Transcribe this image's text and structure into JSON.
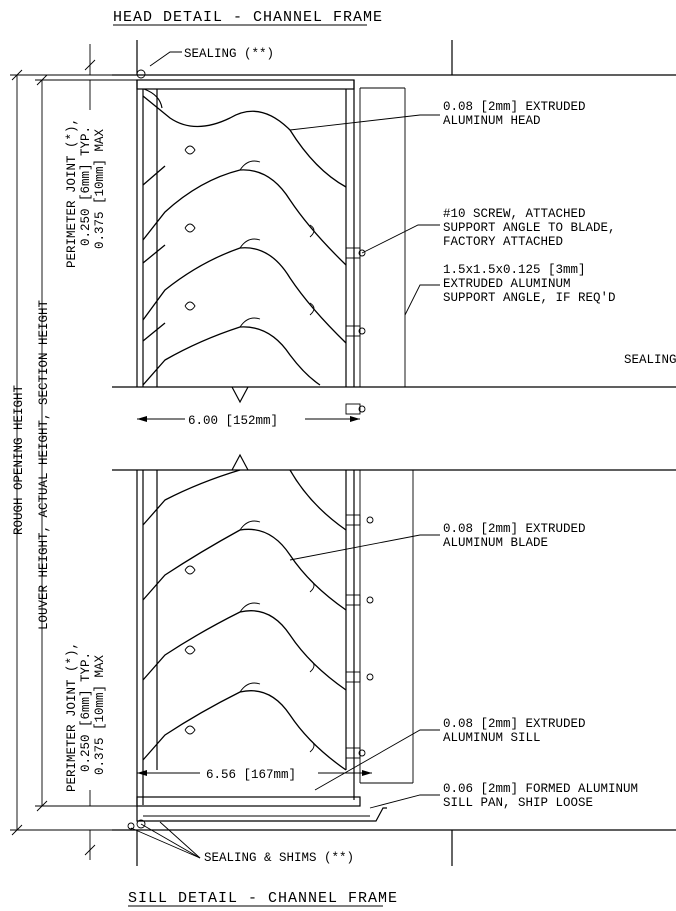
{
  "titles": {
    "head": "HEAD DETAIL - CHANNEL FRAME",
    "sill": "SILL DETAIL - CHANNEL FRAME"
  },
  "labels": {
    "sealing_top": "SEALING (**)",
    "head_line1": "0.08 [2mm] EXTRUDED",
    "head_line2": "ALUMINUM HEAD",
    "screw_line1": "#10 SCREW, ATTACHED",
    "screw_line2": "SUPPORT ANGLE TO BLADE,",
    "screw_line3": "FACTORY ATTACHED",
    "angle_line1": "1.5x1.5x0.125 [3mm]",
    "angle_line2": "EXTRUDED ALUMINUM",
    "angle_line3": "SUPPORT ANGLE, IF REQ'D",
    "sealing_right": "SEALING",
    "blade_line1": "0.08 [2mm] EXTRUDED",
    "blade_line2": "ALUMINUM BLADE",
    "sill_line1": "0.08 [2mm] EXTRUDED",
    "sill_line2": "ALUMINUM SILL",
    "pan_line1": "0.06 [2mm] FORMED ALUMINUM",
    "pan_line2": "SILL PAN, SHIP LOOSE",
    "sealing_shims": "SEALING & SHIMS (**)"
  },
  "dimensions": {
    "width_upper": "6.00 [152mm]",
    "width_lower": "6.56 [167mm]",
    "rough_opening": "ROUGH OPENING HEIGHT",
    "louver_height": "LOUVER HEIGHT, ACTUAL HEIGHT, SECTION HEIGHT",
    "perimeter_top_1": "PERIMETER JOINT (*),",
    "perimeter_top_2": "0.250 [6mm] TYP.",
    "perimeter_top_3": "0.375 [10mm] MAX",
    "perimeter_bot_1": "PERIMETER JOINT (*),",
    "perimeter_bot_2": "0.250 [6mm] TYP.",
    "perimeter_bot_3": "0.375 [10mm] MAX"
  }
}
